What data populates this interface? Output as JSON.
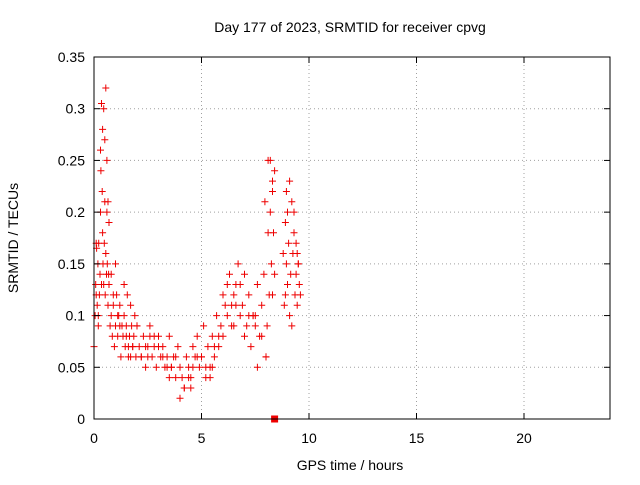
{
  "chart_data": {
    "type": "scatter",
    "title": "Day 177 of 2023, SRMTID for receiver cpvg",
    "xlabel": "GPS time / hours",
    "ylabel": "SRMTID / TECUs",
    "xlim": [
      0,
      24
    ],
    "ylim": [
      0,
      0.35
    ],
    "xticks": [
      0,
      5,
      10,
      15,
      20
    ],
    "xtick_labels": [
      "0",
      "5",
      "10",
      "15",
      "20"
    ],
    "yticks": [
      0,
      0.05,
      0.1,
      0.15,
      0.2,
      0.25,
      0.3,
      0.35
    ],
    "ytick_labels": [
      "0",
      "0.05",
      "0.1",
      "0.15",
      "0.2",
      "0.25",
      "0.3",
      "0.35"
    ],
    "grid": true,
    "marker": "plus",
    "color": "#ee0000",
    "series": [
      {
        "name": "SRMTID",
        "x": [
          0.0,
          0.05,
          0.08,
          0.1,
          0.12,
          0.15,
          0.18,
          0.2,
          0.22,
          0.25,
          0.28,
          0.3,
          0.32,
          0.35,
          0.38,
          0.4,
          0.42,
          0.45,
          0.48,
          0.5,
          0.52,
          0.55,
          0.58,
          0.6,
          0.62,
          0.65,
          0.68,
          0.7,
          0.75,
          0.8,
          0.85,
          0.9,
          0.95,
          1.0,
          1.05,
          1.1,
          1.15,
          1.2,
          1.25,
          1.3,
          1.35,
          1.4,
          1.45,
          1.5,
          1.55,
          1.6,
          1.65,
          1.7,
          1.75,
          1.8,
          1.85,
          1.9,
          1.95,
          2.0,
          2.1,
          2.2,
          2.3,
          2.4,
          2.5,
          2.6,
          2.7,
          2.8,
          2.9,
          3.0,
          3.1,
          3.2,
          3.3,
          3.4,
          3.5,
          3.6,
          3.7,
          3.8,
          3.9,
          4.0,
          4.1,
          4.2,
          4.3,
          4.4,
          4.5,
          4.6,
          4.7,
          4.8,
          4.9,
          5.0,
          5.1,
          5.2,
          5.3,
          5.4,
          5.5,
          5.6,
          5.7,
          5.8,
          5.9,
          6.0,
          6.1,
          6.2,
          6.3,
          6.4,
          6.5,
          6.6,
          6.7,
          6.8,
          6.9,
          7.0,
          7.1,
          7.2,
          7.3,
          7.4,
          7.5,
          7.6,
          7.7,
          7.8,
          7.9,
          8.0,
          8.05,
          8.1,
          8.15,
          8.2,
          8.25,
          8.3,
          8.35,
          8.4,
          8.8,
          8.85,
          8.9,
          8.95,
          9.0,
          9.05,
          9.1,
          9.15,
          9.2,
          9.25,
          9.3,
          9.35,
          9.4,
          9.45,
          9.5,
          9.55,
          9.6,
          0.3,
          0.45,
          0.55,
          0.65,
          0.9,
          1.2,
          1.5,
          1.8,
          2.2,
          2.6,
          3.0,
          3.4,
          3.8,
          4.2,
          4.6,
          5.0,
          5.4,
          5.8,
          6.2,
          6.6,
          7.0,
          7.4,
          7.8,
          8.1,
          8.3,
          8.9,
          9.1,
          9.3,
          9.5,
          0.1,
          0.4,
          0.7,
          1.0,
          1.4,
          1.7,
          2.0,
          2.4,
          2.8,
          3.2,
          3.6,
          4.0,
          4.4,
          4.8,
          5.2,
          5.6,
          6.0,
          6.4,
          6.8,
          7.2,
          7.6,
          7.95,
          8.2,
          8.95,
          9.2,
          9.45,
          0.2,
          0.35,
          0.5,
          0.6,
          0.8,
          1.1,
          1.6,
          2.5,
          3.5,
          4.5,
          5.5,
          6.5,
          7.5,
          8.0,
          8.4,
          9.0,
          9.4,
          8.3
        ],
        "y": [
          0.07,
          0.1,
          0.13,
          0.12,
          0.165,
          0.11,
          0.15,
          0.1,
          0.17,
          0.12,
          0.14,
          0.2,
          0.24,
          0.13,
          0.22,
          0.18,
          0.15,
          0.13,
          0.17,
          0.21,
          0.12,
          0.16,
          0.14,
          0.25,
          0.15,
          0.11,
          0.14,
          0.13,
          0.09,
          0.1,
          0.08,
          0.11,
          0.07,
          0.09,
          0.12,
          0.08,
          0.1,
          0.11,
          0.06,
          0.09,
          0.08,
          0.1,
          0.07,
          0.09,
          0.12,
          0.07,
          0.08,
          0.06,
          0.09,
          0.07,
          0.08,
          0.1,
          0.06,
          0.09,
          0.07,
          0.06,
          0.08,
          0.05,
          0.07,
          0.09,
          0.06,
          0.07,
          0.05,
          0.08,
          0.06,
          0.07,
          0.05,
          0.06,
          0.08,
          0.05,
          0.06,
          0.04,
          0.07,
          0.05,
          0.04,
          0.03,
          0.06,
          0.05,
          0.04,
          0.07,
          0.06,
          0.08,
          0.05,
          0.06,
          0.09,
          0.04,
          0.07,
          0.05,
          0.08,
          0.06,
          0.1,
          0.07,
          0.09,
          0.08,
          0.11,
          0.1,
          0.14,
          0.09,
          0.12,
          0.13,
          0.15,
          0.1,
          0.11,
          0.08,
          0.09,
          0.12,
          0.07,
          0.1,
          0.09,
          0.13,
          0.08,
          0.11,
          0.14,
          0.06,
          0.09,
          0.18,
          0.12,
          0.2,
          0.15,
          0.22,
          0.18,
          0.14,
          0.16,
          0.11,
          0.12,
          0.15,
          0.13,
          0.17,
          0.1,
          0.14,
          0.21,
          0.16,
          0.18,
          0.12,
          0.14,
          0.11,
          0.15,
          0.13,
          0.12,
          0.26,
          0.3,
          0.32,
          0.21,
          0.12,
          0.09,
          0.08,
          0.07,
          0.06,
          0.08,
          0.07,
          0.05,
          0.06,
          0.03,
          0.05,
          0.06,
          0.04,
          0.08,
          0.13,
          0.11,
          0.14,
          0.1,
          0.08,
          0.25,
          0.23,
          0.19,
          0.23,
          0.2,
          0.15,
          0.17,
          0.28,
          0.19,
          0.15,
          0.13,
          0.11,
          0.09,
          0.07,
          0.08,
          0.06,
          0.05,
          0.02,
          0.04,
          0.06,
          0.05,
          0.07,
          0.12,
          0.11,
          0.13,
          0.1,
          0.05,
          0.21,
          0.25,
          0.22,
          0.09,
          0.16,
          0.09,
          0.305,
          0.27,
          0.2,
          0.14,
          0.1,
          0.06,
          0.06,
          0.04,
          0.03,
          0.05,
          0.09,
          0.1,
          0.06,
          0.24,
          0.2,
          0.17,
          0.12
        ]
      }
    ],
    "highlight_points": [
      {
        "x": 8.4,
        "y": 0.0,
        "marker": "filled-square"
      }
    ]
  }
}
